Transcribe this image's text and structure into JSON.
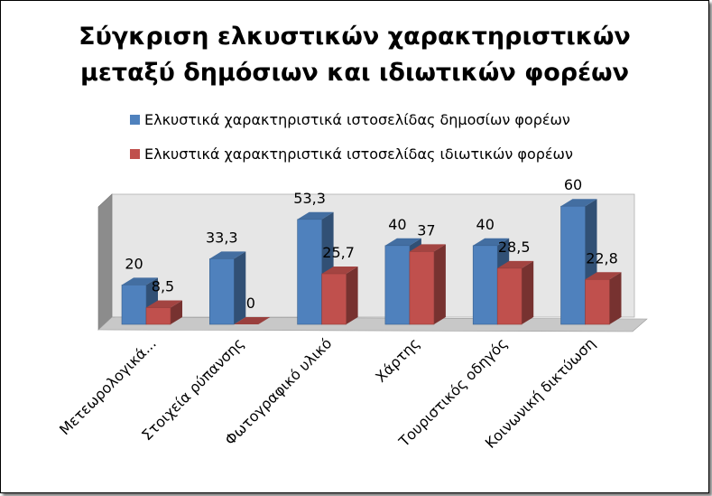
{
  "chart_data": {
    "type": "bar",
    "style": "3d-clustered-column",
    "title_lines": [
      "Σύγκριση ελκυστικών χαρακτηριστικών",
      "μεταξύ δημόσιων και ιδιωτικών φορέων"
    ],
    "categories": [
      "Μετεωρολογικά...",
      "Στοιχεία ρύπανσης",
      "Φωτογραφικό υλικό",
      "Χάρτης",
      "Τουριστικός οδηγός",
      "Κοινωνική δικτύωση"
    ],
    "series": [
      {
        "name": "Ελκυστικά χαρακτηριστικά ιστοσελίδας δημοσίων φορέων",
        "values": [
          20,
          33.3,
          53.3,
          40,
          40,
          60
        ],
        "labels": [
          "20",
          "33,3",
          "53,3",
          "40",
          "40",
          "60"
        ],
        "color": "#4F81BD"
      },
      {
        "name": "Ελκυστικά χαρακτηριστικά ιστοσελίδας ιδιωτικών φορέων",
        "values": [
          8.5,
          0,
          25.7,
          37,
          28.5,
          22.8
        ],
        "labels": [
          "8,5",
          "0",
          "25,7",
          "37",
          "28,5",
          "22,8"
        ],
        "color": "#C0504D"
      }
    ],
    "ylim": [
      0,
      70
    ],
    "grid": false,
    "legend_position": "top"
  }
}
